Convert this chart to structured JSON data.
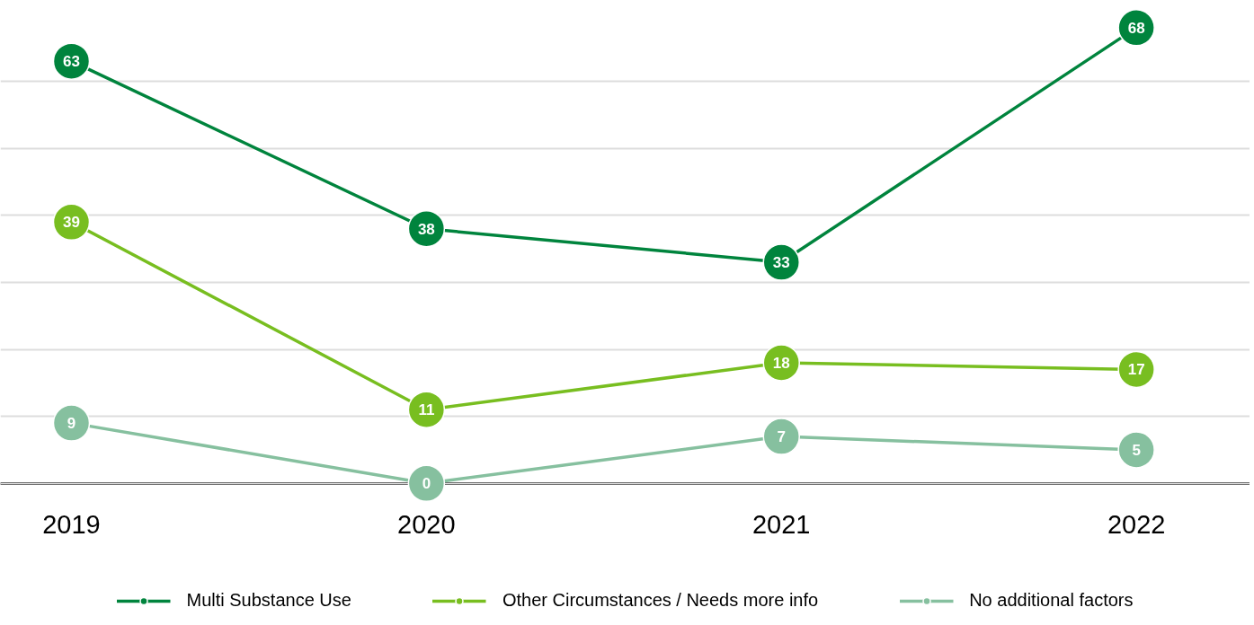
{
  "chart_data": {
    "type": "line",
    "categories": [
      "2019",
      "2020",
      "2021",
      "2022"
    ],
    "series": [
      {
        "name": "Multi Substance Use",
        "color": "#00843d",
        "values": [
          63,
          38,
          33,
          68
        ]
      },
      {
        "name": "Other Circumstances / Needs more info",
        "color": "#78be20",
        "values": [
          39,
          11,
          18,
          17
        ]
      },
      {
        "name": "No additional factors",
        "color": "#86c09f",
        "values": [
          9,
          0,
          7,
          5
        ]
      }
    ],
    "yticks": [
      {
        "value": 0,
        "label": null
      },
      {
        "value": 10,
        "label": null
      },
      {
        "value": 20,
        "label": null
      },
      {
        "value": 30,
        "label": null
      },
      {
        "value": 40,
        "label": null
      },
      {
        "value": 50,
        "label": null
      },
      {
        "value": 60,
        "label": null
      }
    ],
    "tick_labels": "x",
    "grid": "y",
    "legend": "bottom",
    "marker": "circle",
    "line_style": "solid",
    "data_labels": true
  }
}
